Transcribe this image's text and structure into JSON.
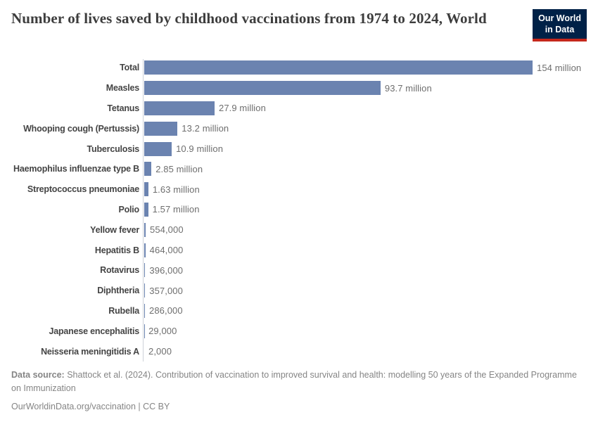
{
  "header": {
    "title": "Number of lives saved by childhood vaccinations from 1974 to 2024, World",
    "logo": {
      "line1": "Our World",
      "line2": "in Data",
      "bg_color": "#002147",
      "accent_color": "#c5281c"
    }
  },
  "chart_data": {
    "type": "bar",
    "orientation": "horizontal",
    "title": "Number of lives saved by childhood vaccinations from 1974 to 2024, World",
    "xlabel": "",
    "ylabel": "",
    "grid": false,
    "legend": "none",
    "xlim_millions": [
      0,
      154
    ],
    "bar_color": "#6b83b0",
    "categories": [
      "Total",
      "Measles",
      "Tetanus",
      "Whooping cough (Pertussis)",
      "Tuberculosis",
      "Haemophilus influenzae type B",
      "Streptococcus pneumoniae",
      "Polio",
      "Yellow fever",
      "Hepatitis B",
      "Rotavirus",
      "Diphtheria",
      "Rubella",
      "Japanese encephalitis",
      "Neisseria meningitidis A"
    ],
    "values_millions": [
      154,
      93.7,
      27.9,
      13.2,
      10.9,
      2.85,
      1.63,
      1.57,
      0.554,
      0.464,
      0.396,
      0.357,
      0.286,
      0.029,
      0.002
    ],
    "value_labels": [
      "154 million",
      "93.7 million",
      "27.9 million",
      "13.2 million",
      "10.9 million",
      "2.85 million",
      "1.63 million",
      "1.57 million",
      "554,000",
      "464,000",
      "396,000",
      "357,000",
      "286,000",
      "29,000",
      "2,000"
    ]
  },
  "footer": {
    "source_label": "Data source:",
    "source_text": " Shattock et al. (2024). Contribution of vaccination to improved survival and health: modelling 50 years of the Expanded Programme on Immunization",
    "url": "OurWorldinData.org/vaccination",
    "separator": " | ",
    "license": "CC BY"
  }
}
